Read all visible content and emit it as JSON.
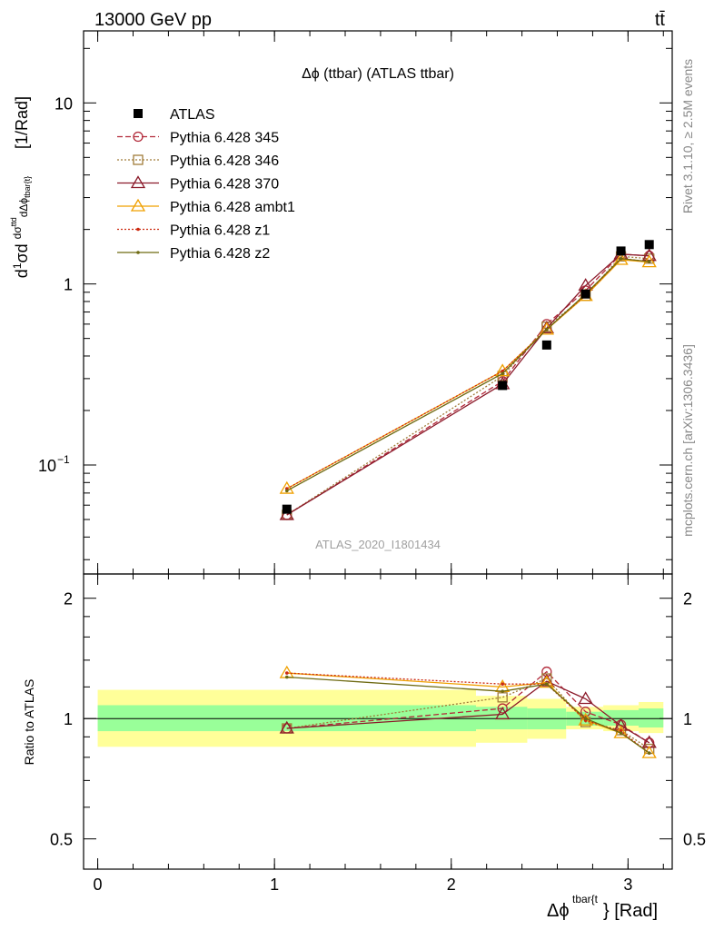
{
  "header": {
    "left": "13000 GeV pp",
    "right": "tt̄"
  },
  "side_labels": {
    "rivet": "Rivet 3.1.10, ≥ 2.5M events",
    "mcplots": "mcplots.cern.ch [arXiv:1306.3436]"
  },
  "chart_data": {
    "type": "scatter",
    "title": "Δϕ (ttbar) (ATLAS ttbar)",
    "watermark": "ATLAS_2020_I1801434",
    "xlabel": "Δϕ^{tbar{t}} [Rad]",
    "xlabel_main": "Δϕ",
    "xlabel_sup": "tbar{t",
    "xlabel_tail": "} [Rad]",
    "ylabel": "d1/σ dσ^{tt}/dΔϕ^{tbar{t}} [1/Rad]",
    "ylabel_main": "[1/Rad]",
    "ylabel_top": "d(1/σ)dσ^ttd / dΔϕ^tbar{t}",
    "ratio_ylabel": "Ratio to ATLAS",
    "xlim": [
      -0.08,
      3.25
    ],
    "ylim": [
      0.025,
      25
    ],
    "ratio_ylim": [
      0.42,
      2.3
    ],
    "yscale": "log",
    "x_ticks": [
      "0",
      "1",
      "2",
      "3"
    ],
    "y_ticks": [
      "10",
      "1",
      "10^-1"
    ],
    "ratio_ticks": [
      "2",
      "1",
      "0.5"
    ],
    "legend_position": "top-left",
    "x": [
      1.07,
      2.29,
      2.54,
      2.76,
      2.96,
      3.12
    ],
    "data": {
      "name": "ATLAS",
      "values": [
        0.057,
        0.275,
        0.46,
        0.88,
        1.52,
        1.65
      ]
    },
    "series": [
      {
        "name": "Pythia 6.428 345",
        "color": "#b22a3a",
        "marker": "circle-open",
        "dash": "6,3",
        "values": [
          0.053,
          0.29,
          0.6,
          0.92,
          1.46,
          1.43
        ],
        "ratio": [
          0.945,
          1.06,
          1.31,
          1.04,
          0.965,
          0.87
        ]
      },
      {
        "name": "Pythia 6.428 346",
        "color": "#a07c3a",
        "marker": "square-open",
        "dash": "2,2",
        "values": [
          0.053,
          0.31,
          0.58,
          0.86,
          1.42,
          1.38
        ],
        "ratio": [
          0.945,
          1.13,
          1.26,
          0.98,
          0.935,
          0.84
        ]
      },
      {
        "name": "Pythia 6.428 370",
        "color": "#8b1a2a",
        "marker": "triangle-open",
        "dash": "",
        "values": [
          0.053,
          0.28,
          0.57,
          0.98,
          1.46,
          1.43
        ],
        "ratio": [
          0.945,
          1.025,
          1.24,
          1.12,
          0.96,
          0.87
        ]
      },
      {
        "name": "Pythia 6.428 ambt1",
        "color": "#f0a000",
        "marker": "triangle-open",
        "dash": "",
        "values": [
          0.074,
          0.33,
          0.56,
          0.86,
          1.36,
          1.32
        ],
        "ratio": [
          1.3,
          1.2,
          1.23,
          0.99,
          0.92,
          0.82
        ]
      },
      {
        "name": "Pythia 6.428 z1",
        "color": "#cc2a10",
        "marker": "dot",
        "dash": "2,2",
        "values": [
          0.074,
          0.33,
          0.56,
          0.87,
          1.38,
          1.33
        ],
        "ratio": [
          1.3,
          1.22,
          1.22,
          0.99,
          0.93,
          0.82
        ]
      },
      {
        "name": "Pythia 6.428 z2",
        "color": "#6e6a12",
        "marker": "dot",
        "dash": "",
        "values": [
          0.072,
          0.32,
          0.56,
          0.88,
          1.38,
          1.33
        ],
        "ratio": [
          1.27,
          1.17,
          1.22,
          1.0,
          0.92,
          0.82
        ]
      }
    ],
    "ratio_bands": {
      "edges": [
        0,
        2.14,
        2.43,
        2.65,
        2.86,
        3.06,
        3.2
      ],
      "yellow": [
        [
          0.85,
          1.18
        ],
        [
          0.87,
          1.14
        ],
        [
          0.89,
          1.12
        ],
        [
          0.94,
          1.07
        ],
        [
          0.93,
          1.08
        ],
        [
          0.92,
          1.1
        ]
      ],
      "green": [
        [
          0.93,
          1.08
        ],
        [
          0.94,
          1.07
        ],
        [
          0.94,
          1.06
        ],
        [
          0.96,
          1.04
        ],
        [
          0.96,
          1.05
        ],
        [
          0.95,
          1.06
        ]
      ]
    }
  }
}
